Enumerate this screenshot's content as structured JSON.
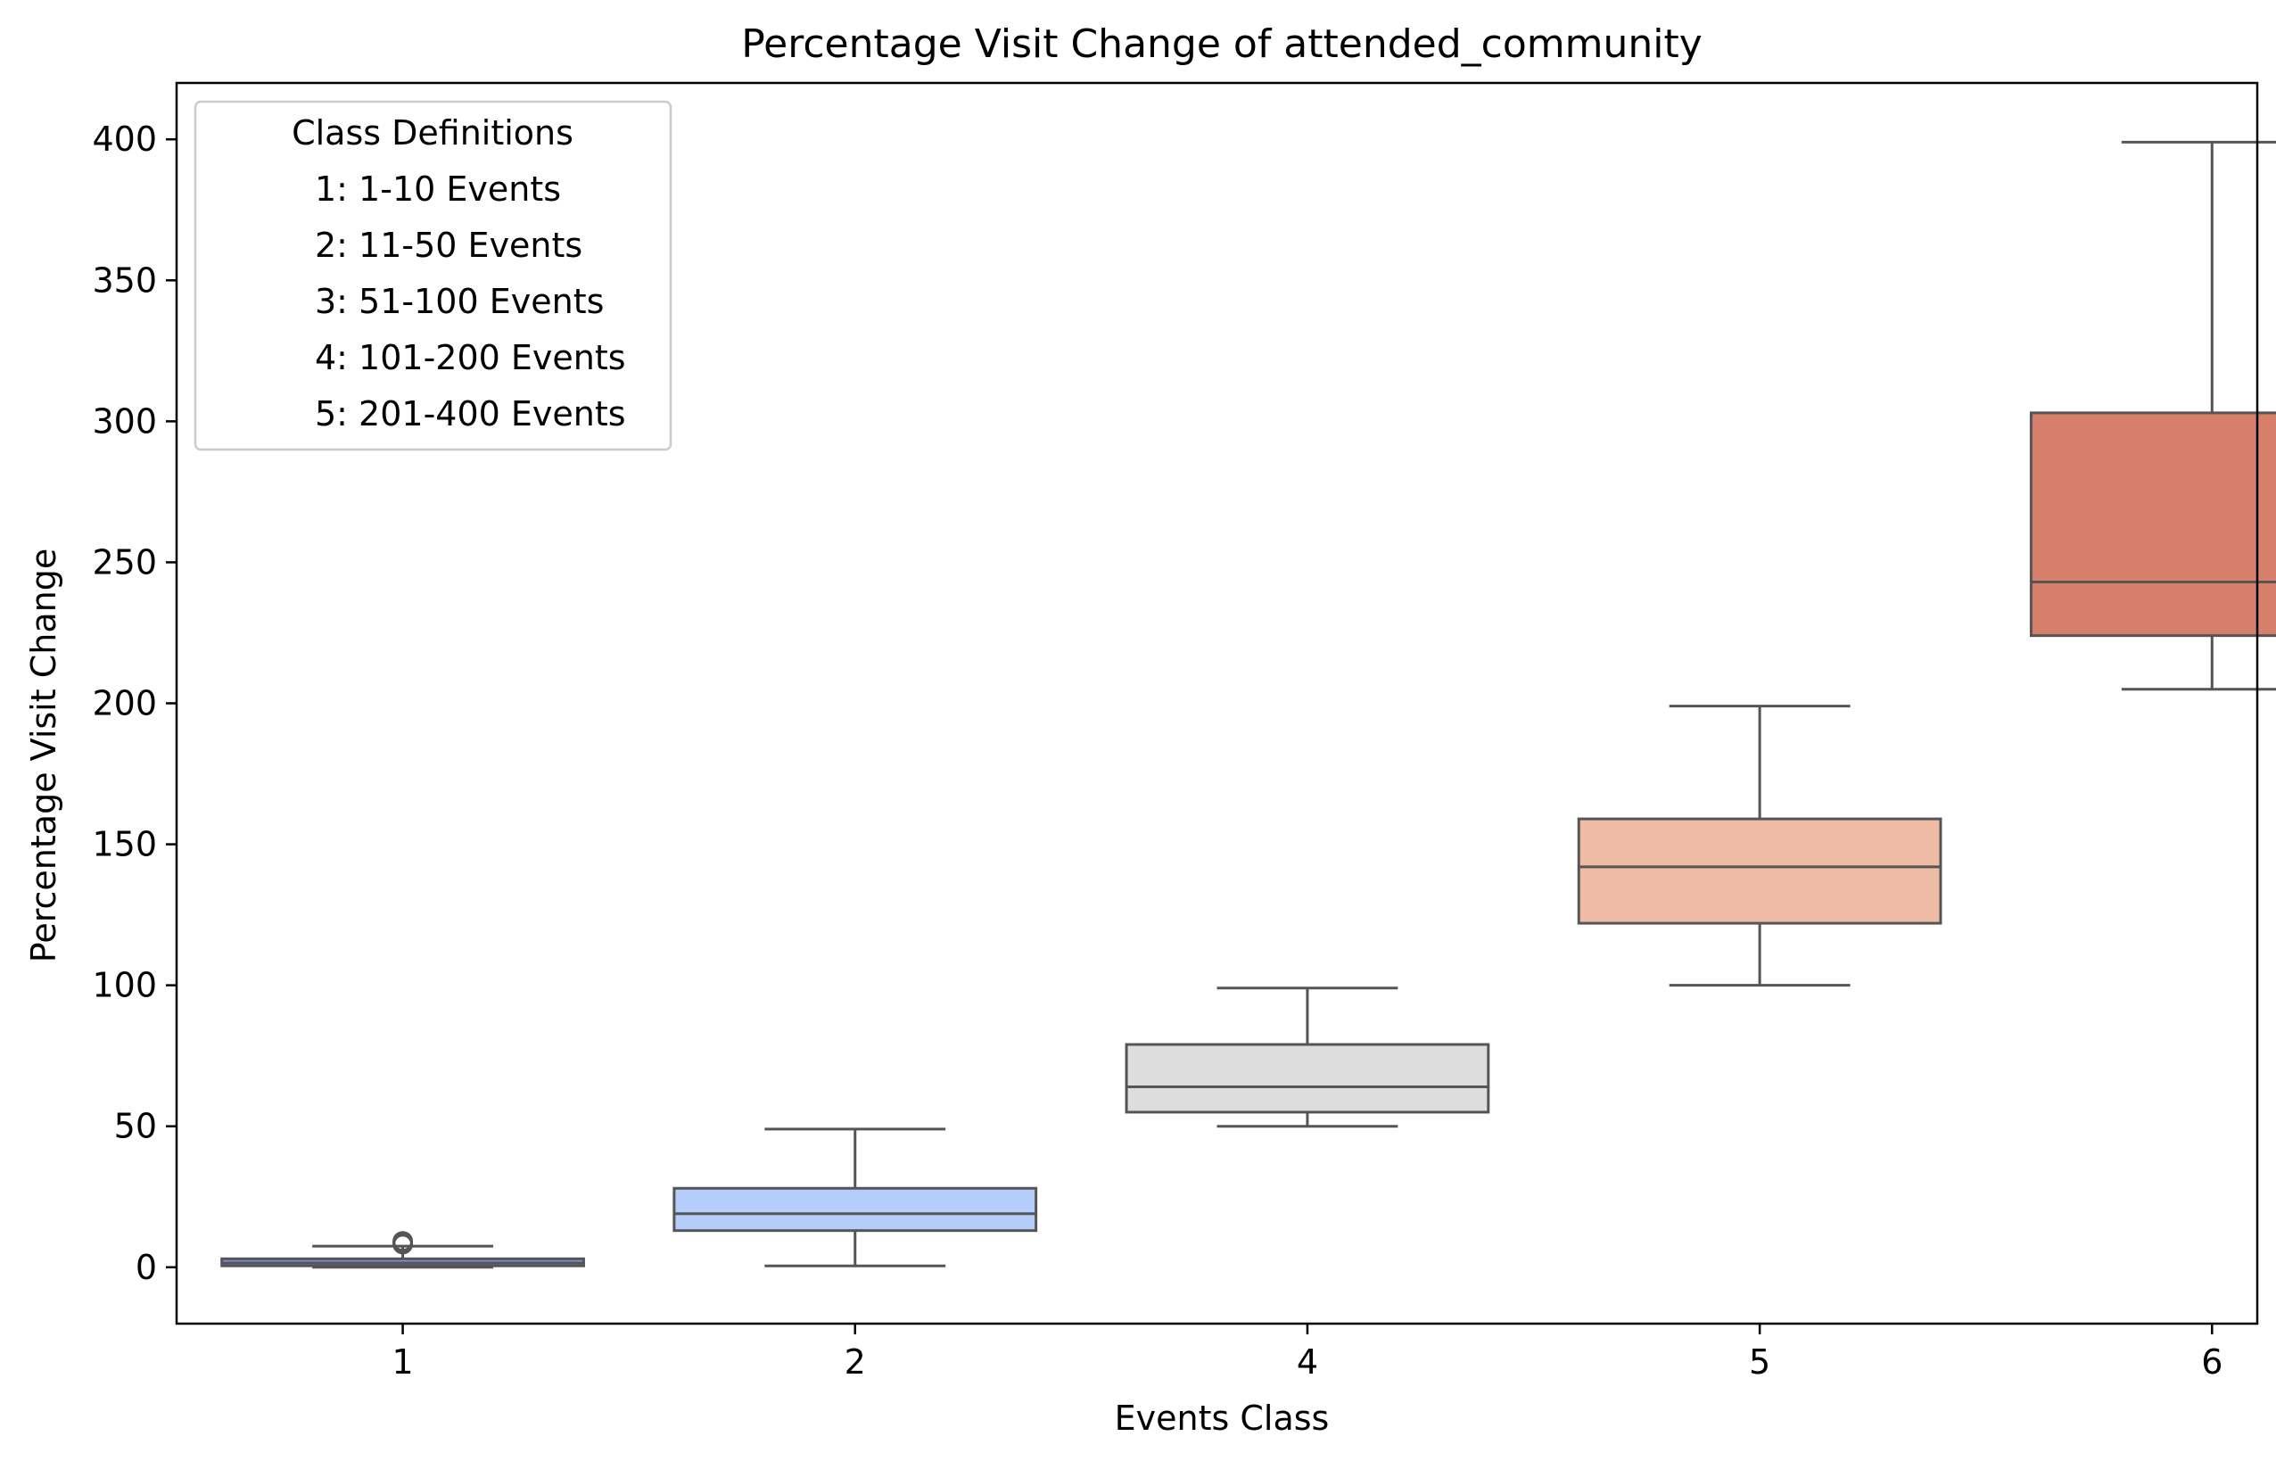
{
  "chart_data": {
    "type": "box",
    "title": "Percentage Visit Change of attended_community",
    "xlabel": "Events Class",
    "ylabel": "Percentage Visit Change",
    "ylim": [
      -20,
      420
    ],
    "yticks": [
      0,
      50,
      100,
      150,
      200,
      250,
      300,
      350,
      400
    ],
    "categories": [
      "1",
      "2",
      "4",
      "5",
      "6"
    ],
    "boxes": [
      {
        "category": "1",
        "whisker_low": 0,
        "q1": 0.5,
        "median": 1.5,
        "q3": 3,
        "whisker_high": 7.5,
        "outliers": [
          8.2,
          8.8,
          9.2
        ],
        "color": "#7b91d8"
      },
      {
        "category": "2",
        "whisker_low": 0.5,
        "q1": 13,
        "median": 19,
        "q3": 28,
        "whisker_high": 49,
        "outliers": [],
        "color": "#b5cdfa"
      },
      {
        "category": "4",
        "whisker_low": 50,
        "q1": 55,
        "median": 64,
        "q3": 79,
        "whisker_high": 99,
        "outliers": [],
        "color": "#dddddd"
      },
      {
        "category": "5",
        "whisker_low": 100,
        "q1": 122,
        "median": 142,
        "q3": 159,
        "whisker_high": 199,
        "outliers": [],
        "color": "#eebca4"
      },
      {
        "category": "6",
        "whisker_low": 205,
        "q1": 224,
        "median": 243,
        "q3": 303,
        "whisker_high": 399,
        "outliers": [],
        "color": "#d6806c"
      }
    ],
    "legend": {
      "title": "Class Definitions",
      "placement": "upper-left",
      "entries": [
        "1: 1-10 Events",
        "2: 11-50 Events",
        "3: 51-100 Events",
        "4: 101-200 Events",
        "5: 201-400 Events"
      ]
    },
    "grid": false
  }
}
